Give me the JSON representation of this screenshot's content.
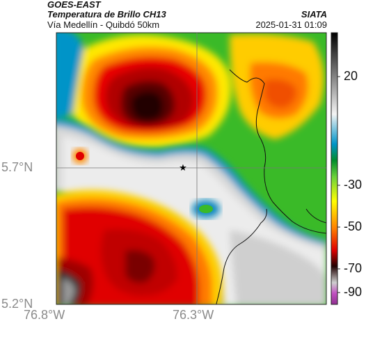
{
  "header": {
    "satellite": "GOES-EAST",
    "product": "Temperatura de Brillo CH13",
    "region": "Vía Medellín - Quibdó 50km",
    "org": "SIATA",
    "timestamp": "2025-01-31 01:09"
  },
  "axes": {
    "lat_ticks": [
      "5.7°N",
      "5.2°N"
    ],
    "lon_ticks": [
      "76.8°W",
      "76.3°W"
    ]
  },
  "colorbar": {
    "tick_labels": [
      "20",
      "-30",
      "-50",
      "-70",
      "-90"
    ]
  },
  "marker": {
    "symbol": "★"
  },
  "colors": {
    "warm": "#c6c6c6",
    "very_cold": "#5a0000"
  }
}
